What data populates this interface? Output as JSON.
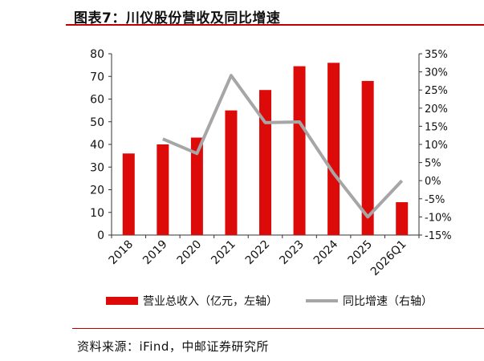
{
  "title": "图表7：川仪股份营收及同比增速",
  "source": "资料来源：iFind，中邮证券研究所",
  "colors": {
    "bar": "#dd0a0a",
    "line": "#a6a6a6",
    "accent": "#c00000"
  },
  "chart_data": {
    "type": "bar",
    "categories": [
      "2018",
      "2019",
      "2020",
      "2021",
      "2022",
      "2023",
      "2024",
      "2025",
      "2026Q1"
    ],
    "series": [
      {
        "name": "营业总收入（亿元，左轴）",
        "type": "bar",
        "axis": "left",
        "values": [
          36,
          40,
          43,
          55,
          64,
          74.5,
          76,
          68,
          14.5
        ]
      },
      {
        "name": "同比增速（右轴）",
        "type": "line",
        "axis": "right",
        "values": [
          null,
          11.5,
          7.5,
          29,
          16,
          16.2,
          2,
          -10,
          0
        ]
      }
    ],
    "left_axis": {
      "ylim": [
        0,
        80
      ],
      "ticks": [
        "0",
        "10",
        "20",
        "30",
        "40",
        "50",
        "60",
        "70",
        "80"
      ]
    },
    "right_axis": {
      "ylim": [
        -15,
        35
      ],
      "ticks": [
        "-15%",
        "-10%",
        "-5%",
        "0%",
        "5%",
        "10%",
        "15%",
        "20%",
        "25%",
        "30%",
        "35%"
      ]
    },
    "legend_placement": "bottom",
    "grid": false
  }
}
